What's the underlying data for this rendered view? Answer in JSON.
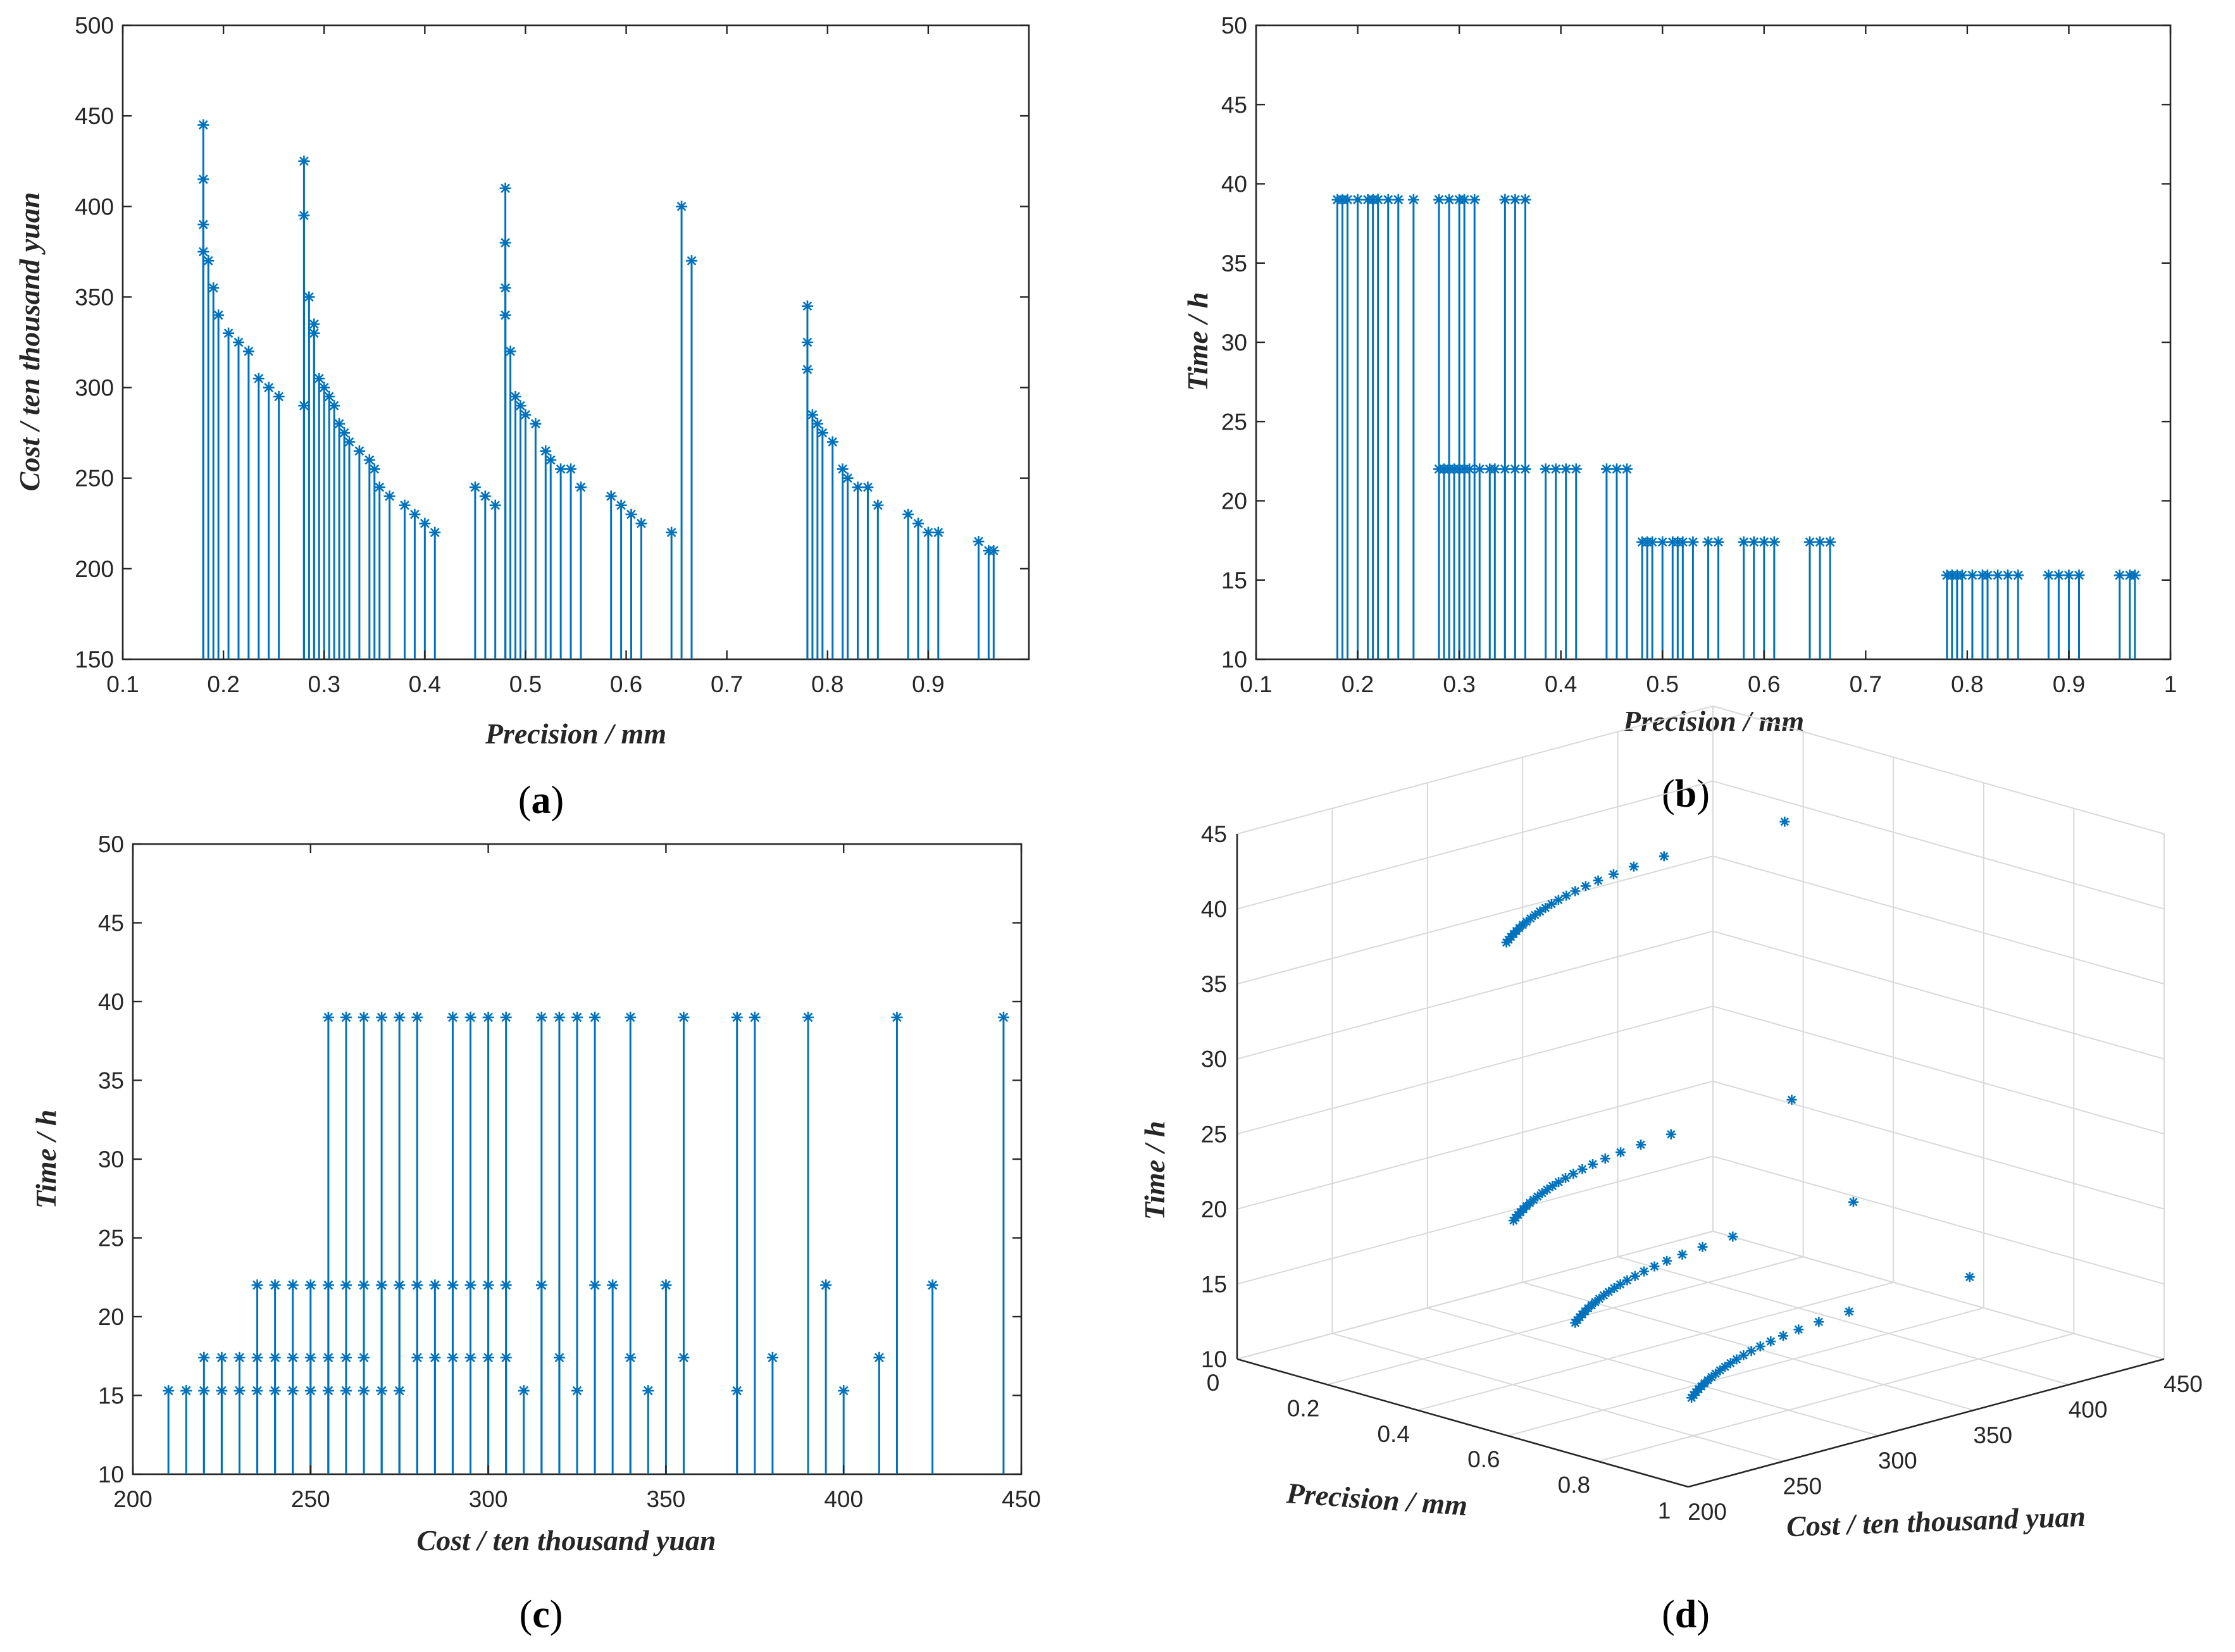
{
  "colors": {
    "series": "#0072BD",
    "axes": "#262626",
    "grid": "#d9d9d9"
  },
  "chart_data": [
    {
      "id": "a",
      "type": "stem",
      "caption": "a",
      "xlabel": "Precision / mm",
      "ylabel": "Cost / ten thousand yuan",
      "xlim": [
        0.1,
        1.0
      ],
      "ylim": [
        150,
        500
      ],
      "xticks": [
        0.1,
        0.2,
        0.3,
        0.4,
        0.5,
        0.6,
        0.7,
        0.8,
        0.9
      ],
      "yticks": [
        150,
        200,
        250,
        300,
        350,
        400,
        450,
        500
      ],
      "x": [
        0.18,
        0.18,
        0.18,
        0.18,
        0.185,
        0.19,
        0.195,
        0.205,
        0.215,
        0.225,
        0.235,
        0.245,
        0.255,
        0.28,
        0.28,
        0.28,
        0.285,
        0.29,
        0.29,
        0.295,
        0.3,
        0.305,
        0.31,
        0.315,
        0.32,
        0.325,
        0.335,
        0.345,
        0.35,
        0.355,
        0.365,
        0.38,
        0.39,
        0.4,
        0.41,
        0.45,
        0.46,
        0.47,
        0.48,
        0.48,
        0.48,
        0.48,
        0.485,
        0.49,
        0.495,
        0.5,
        0.51,
        0.52,
        0.525,
        0.535,
        0.545,
        0.555,
        0.585,
        0.595,
        0.605,
        0.615,
        0.645,
        0.655,
        0.665,
        0.78,
        0.78,
        0.78,
        0.785,
        0.79,
        0.795,
        0.805,
        0.815,
        0.82,
        0.83,
        0.84,
        0.85,
        0.88,
        0.89,
        0.9,
        0.91,
        0.95,
        0.96,
        0.965
      ],
      "y": [
        445,
        415,
        390,
        375,
        370,
        355,
        340,
        330,
        325,
        320,
        305,
        300,
        295,
        290,
        425,
        395,
        350,
        335,
        330,
        305,
        300,
        295,
        290,
        280,
        275,
        270,
        265,
        260,
        255,
        245,
        240,
        235,
        230,
        225,
        220,
        245,
        240,
        235,
        410,
        380,
        355,
        340,
        320,
        295,
        290,
        285,
        280,
        265,
        260,
        255,
        255,
        245,
        240,
        235,
        230,
        225,
        220,
        400,
        370,
        345,
        325,
        310,
        285,
        280,
        275,
        270,
        255,
        250,
        245,
        245,
        235,
        230,
        225,
        220,
        220,
        215,
        210,
        210
      ]
    },
    {
      "id": "b",
      "type": "stem",
      "caption": "b",
      "xlabel": "Precision / mm",
      "ylabel": "Time / h",
      "xlim": [
        0.1,
        1.0
      ],
      "ylim": [
        10,
        50
      ],
      "xticks": [
        0.1,
        0.2,
        0.3,
        0.4,
        0.5,
        0.6,
        0.7,
        0.8,
        0.9,
        1
      ],
      "yticks": [
        10,
        15,
        20,
        25,
        30,
        35,
        40,
        45,
        50
      ],
      "x": [
        0.18,
        0.185,
        0.19,
        0.2,
        0.21,
        0.215,
        0.22,
        0.23,
        0.24,
        0.255,
        0.28,
        0.29,
        0.3,
        0.305,
        0.315,
        0.345,
        0.355,
        0.365,
        0.28,
        0.285,
        0.29,
        0.295,
        0.3,
        0.305,
        0.31,
        0.32,
        0.33,
        0.335,
        0.345,
        0.355,
        0.365,
        0.385,
        0.395,
        0.405,
        0.415,
        0.445,
        0.455,
        0.465,
        0.48,
        0.485,
        0.49,
        0.5,
        0.51,
        0.515,
        0.52,
        0.53,
        0.545,
        0.555,
        0.58,
        0.59,
        0.6,
        0.61,
        0.645,
        0.655,
        0.665,
        0.78,
        0.785,
        0.79,
        0.795,
        0.805,
        0.815,
        0.82,
        0.83,
        0.84,
        0.85,
        0.88,
        0.89,
        0.9,
        0.91,
        0.95,
        0.96,
        0.965
      ],
      "y": [
        39,
        39,
        39,
        39,
        39,
        39,
        39,
        39,
        39,
        39,
        39,
        39,
        39,
        39,
        39,
        39,
        39,
        39,
        22,
        22,
        22,
        22,
        22,
        22,
        22,
        22,
        22,
        22,
        22,
        22,
        22,
        22,
        22,
        22,
        22,
        22,
        22,
        22,
        17.4,
        17.4,
        17.4,
        17.4,
        17.4,
        17.4,
        17.4,
        17.4,
        17.4,
        17.4,
        17.4,
        17.4,
        17.4,
        17.4,
        17.4,
        17.4,
        17.4,
        15.3,
        15.3,
        15.3,
        15.3,
        15.3,
        15.3,
        15.3,
        15.3,
        15.3,
        15.3,
        15.3,
        15.3,
        15.3,
        15.3,
        15.3,
        15.3,
        15.3
      ]
    },
    {
      "id": "c",
      "type": "stem",
      "caption": "c",
      "xlabel": "Cost / ten thousand yuan",
      "ylabel": "Time / h",
      "xlim": [
        200,
        450
      ],
      "ylim": [
        10,
        50
      ],
      "xticks": [
        200,
        250,
        300,
        350,
        400,
        450
      ],
      "yticks": [
        10,
        15,
        20,
        25,
        30,
        35,
        40,
        45,
        50
      ],
      "x": [
        210,
        215,
        220,
        220,
        225,
        225,
        230,
        230,
        235,
        235,
        235,
        240,
        240,
        240,
        245,
        245,
        245,
        250,
        250,
        250,
        255,
        255,
        255,
        255,
        260,
        260,
        260,
        260,
        265,
        265,
        265,
        265,
        270,
        270,
        270,
        275,
        275,
        275,
        280,
        280,
        280,
        285,
        285,
        290,
        290,
        290,
        295,
        295,
        295,
        300,
        300,
        300,
        305,
        305,
        305,
        310,
        315,
        315,
        320,
        320,
        325,
        325,
        330,
        330,
        335,
        340,
        340,
        345,
        350,
        355,
        355,
        370,
        370,
        375,
        380,
        390,
        395,
        400,
        410,
        415,
        425,
        445
      ],
      "y": [
        15.3,
        15.3,
        17.4,
        15.3,
        17.4,
        15.3,
        17.4,
        15.3,
        22,
        17.4,
        15.3,
        22,
        17.4,
        15.3,
        22,
        17.4,
        15.3,
        22,
        17.4,
        15.3,
        39,
        22,
        17.4,
        15.3,
        39,
        22,
        17.4,
        15.3,
        39,
        22,
        17.4,
        15.3,
        39,
        22,
        15.3,
        39,
        22,
        15.3,
        39,
        22,
        17.4,
        22,
        17.4,
        39,
        22,
        17.4,
        39,
        22,
        17.4,
        39,
        22,
        17.4,
        39,
        22,
        17.4,
        15.3,
        39,
        22,
        39,
        17.4,
        39,
        15.3,
        39,
        22,
        22,
        39,
        17.4,
        15.3,
        22,
        39,
        17.4,
        39,
        15.3,
        39,
        17.4,
        39,
        22,
        15.3,
        17.4,
        39,
        22,
        39
      ]
    },
    {
      "id": "d",
      "type": "scatter3d",
      "caption": "d",
      "xlabel": "Precision / mm",
      "ylabel": "Cost / ten thousand yuan",
      "zlabel": "Time / h",
      "xlim": [
        0,
        1
      ],
      "ylim": [
        200,
        450
      ],
      "zlim": [
        10,
        45
      ],
      "xticks": [
        0,
        0.2,
        0.4,
        0.6,
        0.8,
        1
      ],
      "yticks": [
        200,
        250,
        300,
        350,
        400,
        450
      ],
      "zticks": [
        10,
        15,
        20,
        25,
        30,
        35,
        40,
        45
      ],
      "groups": [
        {
          "z": 39,
          "x_range": [
            0.18,
            0.365
          ],
          "y_range": [
            255,
            445
          ]
        },
        {
          "z": 22,
          "x_range": [
            0.28,
            0.465
          ],
          "y_range": [
            235,
            425
          ]
        },
        {
          "z": 17.4,
          "x_range": [
            0.48,
            0.665
          ],
          "y_range": [
            220,
            410
          ]
        },
        {
          "z": 15.3,
          "x_range": [
            0.78,
            0.965
          ],
          "y_range": [
            210,
            400
          ]
        }
      ]
    }
  ]
}
